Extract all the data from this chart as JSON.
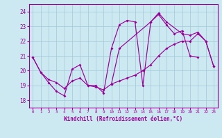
{
  "xlabel": "Windchill (Refroidissement éolien,°C)",
  "bg_color": "#cce8f0",
  "line_color": "#990099",
  "grid_color": "#a0c8d8",
  "xlim": [
    -0.5,
    23.5
  ],
  "ylim": [
    17.5,
    24.5
  ],
  "yticks": [
    18,
    19,
    20,
    21,
    22,
    23,
    24
  ],
  "xticks": [
    0,
    1,
    2,
    3,
    4,
    5,
    6,
    7,
    8,
    9,
    10,
    11,
    12,
    13,
    14,
    15,
    16,
    17,
    18,
    19,
    20,
    21,
    22,
    23
  ],
  "series1_x": [
    0,
    1,
    2,
    3,
    4,
    5,
    6,
    7,
    8,
    9,
    10,
    11,
    12,
    13,
    14,
    15,
    16,
    17,
    18,
    19,
    20,
    21
  ],
  "series1_y": [
    20.9,
    19.9,
    19.2,
    18.6,
    18.3,
    20.1,
    20.4,
    19.0,
    19.0,
    18.5,
    21.5,
    23.1,
    23.4,
    23.3,
    19.0,
    23.3,
    23.8,
    23.1,
    22.5,
    22.7,
    21.0,
    20.9
  ],
  "series2_x": [
    0,
    1,
    2,
    3,
    4,
    5,
    6,
    7,
    8,
    9,
    10,
    11,
    12,
    13,
    14,
    15,
    16,
    17,
    18,
    19,
    20,
    21,
    22,
    23
  ],
  "series2_y": [
    20.9,
    19.9,
    19.4,
    19.2,
    18.8,
    19.3,
    19.5,
    19.0,
    18.9,
    18.7,
    19.1,
    19.3,
    19.5,
    19.7,
    20.0,
    20.4,
    21.0,
    21.5,
    21.8,
    22.0,
    22.0,
    22.5,
    22.0,
    20.3
  ],
  "series3_x": [
    10,
    11,
    15,
    16,
    17,
    19,
    20,
    21,
    22,
    23
  ],
  "series3_y": [
    19.1,
    21.5,
    23.3,
    23.9,
    23.3,
    22.5,
    22.4,
    22.6,
    22.0,
    20.3
  ]
}
